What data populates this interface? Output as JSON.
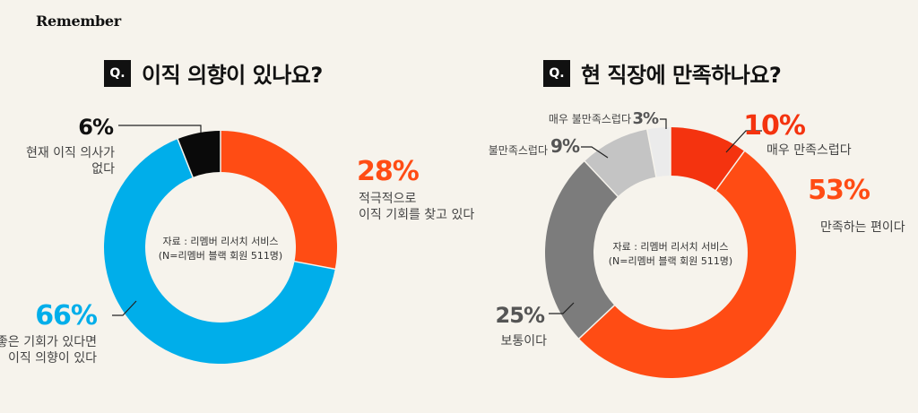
{
  "brand": "Remember",
  "charts": [
    {
      "badge": "Q.",
      "title": "이직 의향이 있나요?",
      "source": [
        "자료 : 리멤버 리서치 서비스",
        "(N=리멤버 블랙 회원 511명)"
      ]
    },
    {
      "badge": "Q.",
      "title": "현 직장에 만족하나요?",
      "source": [
        "자료 : 리멤버 리서치 서비스",
        "(N=리멤버 블랙 회원 511명)"
      ]
    }
  ],
  "chart_data": [
    {
      "type": "pie",
      "title": "이직 의향이 있나요?",
      "slices": [
        {
          "label": [
            "적극적으로",
            "이직 기회를 찾고 있다"
          ],
          "value": 28,
          "display": "28%",
          "color": "#ff4c14"
        },
        {
          "label": [
            "좋은 기회가 있다면",
            "이직 의향이 있다"
          ],
          "value": 66,
          "display": "66%",
          "color": "#00aeea"
        },
        {
          "label": [
            "현재 이직 의사가",
            "없다"
          ],
          "value": 6,
          "display": "6%",
          "color": "#0a0a0a"
        }
      ]
    },
    {
      "type": "pie",
      "title": "현 직장에 만족하나요?",
      "slices": [
        {
          "label": [
            "매우 만족스럽다"
          ],
          "value": 10,
          "display": "10%",
          "color": "#f4330f"
        },
        {
          "label": [
            "만족하는 편이다"
          ],
          "value": 53,
          "display": "53%",
          "color": "#ff4c14"
        },
        {
          "label": [
            "보통이다"
          ],
          "value": 25,
          "display": "25%",
          "color": "#7c7c7c"
        },
        {
          "label": [
            "불만족스럽다"
          ],
          "value": 9,
          "display": "9%",
          "color": "#c4c4c4"
        },
        {
          "label": [
            "매우 불만족스럽다"
          ],
          "value": 3,
          "display": "3%",
          "color": "#ebebeb"
        }
      ]
    }
  ]
}
